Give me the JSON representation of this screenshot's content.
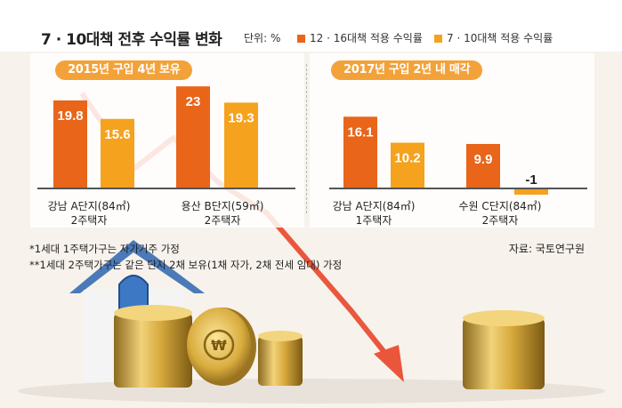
{
  "title": "7 · 10대책 전후 수익률 변화",
  "unit_label": "단위: %",
  "colors": {
    "series_1216": "#e8651a",
    "series_710": "#f5a21e",
    "pill": "#f3a23a",
    "label_text": "#ffffff"
  },
  "chart_data": [
    {
      "type": "bar",
      "title": "2015년 구입 4년 보유",
      "categories": [
        "강남 A단지(84㎡)\n2주택자",
        "용산 B단지(59㎡)\n2주택자"
      ],
      "series": [
        {
          "name": "12 · 16대책 적용 수익률",
          "values": [
            19.8,
            23
          ]
        },
        {
          "name": "7 · 10대책 적용 수익률",
          "values": [
            15.6,
            19.3
          ]
        }
      ],
      "value_labels": [
        [
          "19.8",
          "23"
        ],
        [
          "15.6",
          "19.3"
        ]
      ]
    },
    {
      "type": "bar",
      "title": "2017년 구입 2년 내 매각",
      "categories": [
        "강남 A단지(84㎡)\n1주택자",
        "수원 C단지(84㎡)\n2주택자"
      ],
      "series": [
        {
          "name": "12 · 16대책 적용 수익률",
          "values": [
            16.1,
            9.9
          ]
        },
        {
          "name": "7 · 10대책 적용 수익률",
          "values": [
            10.2,
            -1
          ]
        }
      ],
      "value_labels": [
        [
          "16.1",
          "9.9"
        ],
        [
          "10.2",
          "-1"
        ]
      ]
    }
  ],
  "notes": [
    "*1세대 1주택가구는 자가거주 가정",
    "**1세대 2주택가구는 같은 단지 2채 보유(1채 자가, 2채 전세 임대) 가정"
  ],
  "source": "자료: 국토연구원"
}
